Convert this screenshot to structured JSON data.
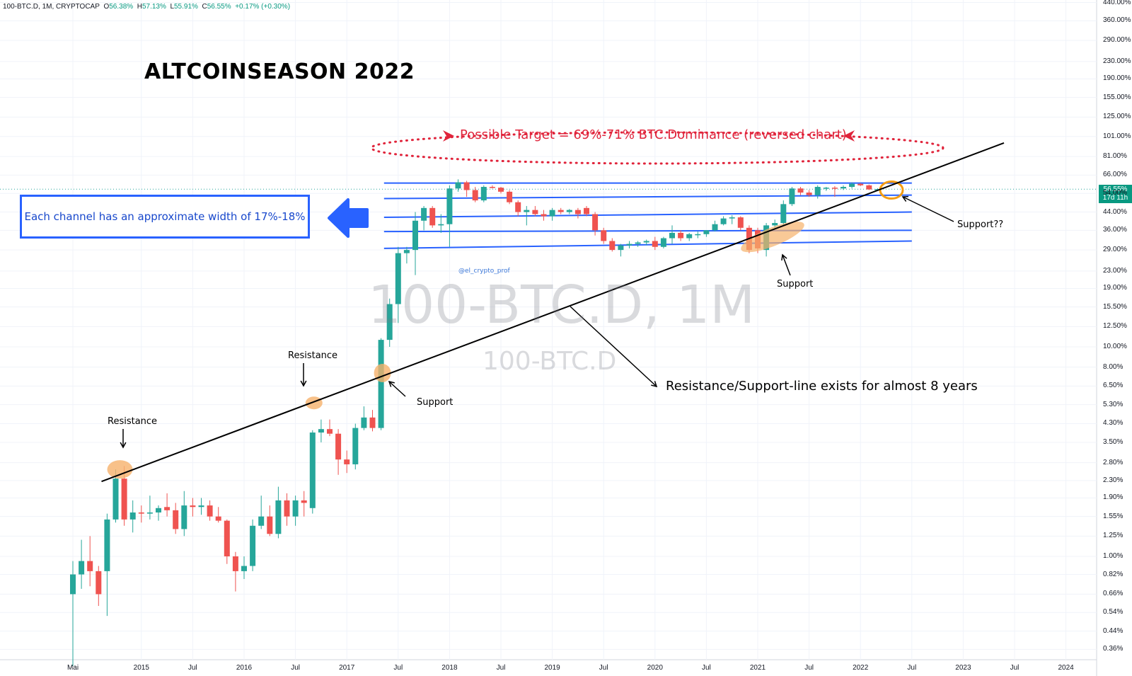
{
  "header": {
    "symbol": "100-BTC.D, 1M, CRYPTOCAP",
    "o_label": "O",
    "o": "56.38%",
    "h_label": "H",
    "h": "57.13%",
    "l_label": "L",
    "l": "55.91%",
    "c_label": "C",
    "c": "56.55%",
    "change": "+0.17% (+0.30%)"
  },
  "title": "ALTCOINSEASON 2022",
  "channel_box": "Each channel has an approximate width of 17%-18%",
  "target_text": "Possible Target = 69%-71% BTC.Dominance (reversed chart)",
  "annotations": {
    "resistance1": "Resistance",
    "resistance2": "Resistance",
    "support1": "Support",
    "support2": "Support",
    "support3": "Support??",
    "trendline": "Resistance/Support-line exists for almost 8 years",
    "credit": "@el_crypto_prof"
  },
  "watermark": {
    "main": "100-BTC.D, 1M",
    "sub": "100-BTC.D"
  },
  "price_tag": {
    "value": "56.55%",
    "countdown": "17d 11h"
  },
  "colors": {
    "up": "#26a69a",
    "down": "#ef5350",
    "channel": "#2962ff",
    "target": "#e0233a",
    "highlight": "#f6b26b"
  },
  "chart_data": {
    "type": "candlestick",
    "y_scale": "log",
    "y_unit": "%",
    "y_ticks": [
      "440.00%",
      "360.00%",
      "290.00%",
      "230.00%",
      "190.00%",
      "155.00%",
      "125.00%",
      "101.00%",
      "81.00%",
      "66.00%",
      "54.00%",
      "44.00%",
      "36.00%",
      "29.00%",
      "23.00%",
      "19.00%",
      "15.50%",
      "12.50%",
      "10.00%",
      "8.00%",
      "6.50%",
      "5.30%",
      "4.30%",
      "3.50%",
      "2.80%",
      "2.30%",
      "1.90%",
      "1.55%",
      "1.25%",
      "1.00%",
      "0.82%",
      "0.66%",
      "0.54%",
      "0.44%",
      "0.36%"
    ],
    "x_ticks": [
      "Mai",
      "2015",
      "Jul",
      "2016",
      "Jul",
      "2017",
      "Jul",
      "2018",
      "Jul",
      "2019",
      "Jul",
      "2020",
      "Jul",
      "2021",
      "Jul",
      "2022",
      "Jul",
      "2023",
      "Jul",
      "2024"
    ],
    "candles": [
      {
        "date": "2014-05",
        "o": 0.66,
        "h": 0.95,
        "l": 0.3,
        "c": 0.82
      },
      {
        "date": "2014-06",
        "o": 0.82,
        "h": 1.2,
        "l": 0.7,
        "c": 0.95
      },
      {
        "date": "2014-07",
        "o": 0.95,
        "h": 1.25,
        "l": 0.72,
        "c": 0.85
      },
      {
        "date": "2014-08",
        "o": 0.85,
        "h": 0.9,
        "l": 0.58,
        "c": 0.66
      },
      {
        "date": "2014-09",
        "o": 0.85,
        "h": 1.6,
        "l": 0.52,
        "c": 1.5
      },
      {
        "date": "2014-10",
        "o": 1.5,
        "h": 2.6,
        "l": 1.45,
        "c": 2.35
      },
      {
        "date": "2014-11",
        "o": 2.35,
        "h": 2.7,
        "l": 1.4,
        "c": 1.5
      },
      {
        "date": "2014-12",
        "o": 1.5,
        "h": 1.85,
        "l": 1.3,
        "c": 1.62
      },
      {
        "date": "2015-01",
        "o": 1.62,
        "h": 1.75,
        "l": 1.45,
        "c": 1.6
      },
      {
        "date": "2015-02",
        "o": 1.6,
        "h": 1.95,
        "l": 1.5,
        "c": 1.62
      },
      {
        "date": "2015-03",
        "o": 1.62,
        "h": 1.75,
        "l": 1.48,
        "c": 1.7
      },
      {
        "date": "2015-04",
        "o": 1.72,
        "h": 2.0,
        "l": 1.55,
        "c": 1.66
      },
      {
        "date": "2015-05",
        "o": 1.66,
        "h": 1.8,
        "l": 1.28,
        "c": 1.35
      },
      {
        "date": "2015-06",
        "o": 1.35,
        "h": 2.05,
        "l": 1.25,
        "c": 1.75
      },
      {
        "date": "2015-07",
        "o": 1.75,
        "h": 1.9,
        "l": 1.55,
        "c": 1.72
      },
      {
        "date": "2015-08",
        "o": 1.72,
        "h": 1.9,
        "l": 1.58,
        "c": 1.75
      },
      {
        "date": "2015-09",
        "o": 1.75,
        "h": 1.85,
        "l": 1.48,
        "c": 1.55
      },
      {
        "date": "2015-10",
        "o": 1.55,
        "h": 1.72,
        "l": 1.45,
        "c": 1.48
      },
      {
        "date": "2015-11",
        "o": 1.48,
        "h": 1.5,
        "l": 0.92,
        "c": 1.0
      },
      {
        "date": "2015-12",
        "o": 1.0,
        "h": 1.05,
        "l": 0.68,
        "c": 0.85
      },
      {
        "date": "2016-01",
        "o": 0.85,
        "h": 1.0,
        "l": 0.78,
        "c": 0.9
      },
      {
        "date": "2016-02",
        "o": 0.9,
        "h": 1.5,
        "l": 0.85,
        "c": 1.4
      },
      {
        "date": "2016-03",
        "o": 1.4,
        "h": 1.95,
        "l": 1.35,
        "c": 1.55
      },
      {
        "date": "2016-04",
        "o": 1.55,
        "h": 1.75,
        "l": 1.25,
        "c": 1.28
      },
      {
        "date": "2016-05",
        "o": 1.28,
        "h": 2.15,
        "l": 1.22,
        "c": 1.85
      },
      {
        "date": "2016-06",
        "o": 1.85,
        "h": 2.0,
        "l": 1.4,
        "c": 1.55
      },
      {
        "date": "2016-07",
        "o": 1.55,
        "h": 1.95,
        "l": 1.4,
        "c": 1.85
      },
      {
        "date": "2016-08",
        "o": 1.85,
        "h": 2.05,
        "l": 1.55,
        "c": 1.8
      },
      {
        "date": "2016-09",
        "o": 1.7,
        "h": 4.0,
        "l": 1.6,
        "c": 3.9
      },
      {
        "date": "2016-10",
        "o": 3.9,
        "h": 4.5,
        "l": 3.5,
        "c": 4.05
      },
      {
        "date": "2016-11",
        "o": 4.05,
        "h": 4.5,
        "l": 3.75,
        "c": 3.85
      },
      {
        "date": "2016-12",
        "o": 3.85,
        "h": 4.05,
        "l": 2.45,
        "c": 2.9
      },
      {
        "date": "2017-01",
        "o": 2.9,
        "h": 3.2,
        "l": 2.5,
        "c": 2.75
      },
      {
        "date": "2017-02",
        "o": 2.75,
        "h": 4.3,
        "l": 2.6,
        "c": 4.1
      },
      {
        "date": "2017-03",
        "o": 4.1,
        "h": 5.2,
        "l": 4.0,
        "c": 4.6
      },
      {
        "date": "2017-04",
        "o": 4.6,
        "h": 5.0,
        "l": 3.95,
        "c": 4.1
      },
      {
        "date": "2017-05",
        "o": 4.1,
        "h": 11.0,
        "l": 4.0,
        "c": 10.8
      },
      {
        "date": "2017-06",
        "o": 10.8,
        "h": 17.0,
        "l": 10.0,
        "c": 16.0
      },
      {
        "date": "2017-07",
        "o": 16.0,
        "h": 30.0,
        "l": 13.0,
        "c": 28.0
      },
      {
        "date": "2017-08",
        "o": 28.0,
        "h": 30.0,
        "l": 25.0,
        "c": 29.0
      },
      {
        "date": "2017-09",
        "o": 29.0,
        "h": 44.0,
        "l": 22.0,
        "c": 40.0
      },
      {
        "date": "2017-10",
        "o": 40.0,
        "h": 47.0,
        "l": 36.0,
        "c": 46.0
      },
      {
        "date": "2017-11",
        "o": 46.0,
        "h": 47.0,
        "l": 37.0,
        "c": 38.0
      },
      {
        "date": "2017-12",
        "o": 38.0,
        "h": 43.0,
        "l": 35.0,
        "c": 38.5
      },
      {
        "date": "2018-01",
        "o": 38.5,
        "h": 59.0,
        "l": 30.0,
        "c": 57.0
      },
      {
        "date": "2018-02",
        "o": 57.0,
        "h": 63.0,
        "l": 55.0,
        "c": 61.0
      },
      {
        "date": "2018-03",
        "o": 61.0,
        "h": 62.0,
        "l": 52.0,
        "c": 56.0
      },
      {
        "date": "2018-04",
        "o": 56.0,
        "h": 58.0,
        "l": 49.0,
        "c": 50.0
      },
      {
        "date": "2018-05",
        "o": 50.0,
        "h": 59.0,
        "l": 49.0,
        "c": 58.0
      },
      {
        "date": "2018-06",
        "o": 58.0,
        "h": 59.0,
        "l": 57.0,
        "c": 57.5
      },
      {
        "date": "2018-07",
        "o": 57.5,
        "h": 58.0,
        "l": 54.0,
        "c": 55.0
      },
      {
        "date": "2018-08",
        "o": 55.0,
        "h": 56.0,
        "l": 48.0,
        "c": 49.0
      },
      {
        "date": "2018-09",
        "o": 49.0,
        "h": 50.0,
        "l": 42.0,
        "c": 44.0
      },
      {
        "date": "2018-10",
        "o": 44.0,
        "h": 47.0,
        "l": 38.0,
        "c": 45.0
      },
      {
        "date": "2018-11",
        "o": 45.0,
        "h": 47.0,
        "l": 42.0,
        "c": 43.0
      },
      {
        "date": "2018-12",
        "o": 43.0,
        "h": 45.0,
        "l": 40.0,
        "c": 42.0
      },
      {
        "date": "2019-01",
        "o": 42.0,
        "h": 46.0,
        "l": 40.0,
        "c": 45.0
      },
      {
        "date": "2019-02",
        "o": 45.0,
        "h": 46.0,
        "l": 43.0,
        "c": 44.0
      },
      {
        "date": "2019-03",
        "o": 44.0,
        "h": 45.5,
        "l": 43.0,
        "c": 45.0
      },
      {
        "date": "2019-04",
        "o": 45.0,
        "h": 46.0,
        "l": 41.0,
        "c": 43.0
      },
      {
        "date": "2019-05",
        "o": 46.0,
        "h": 47.0,
        "l": 42.0,
        "c": 43.0
      },
      {
        "date": "2019-06",
        "o": 43.0,
        "h": 44.0,
        "l": 34.0,
        "c": 36.0
      },
      {
        "date": "2019-07",
        "o": 36.0,
        "h": 37.0,
        "l": 31.0,
        "c": 32.0
      },
      {
        "date": "2019-08",
        "o": 32.0,
        "h": 33.0,
        "l": 28.5,
        "c": 29.0
      },
      {
        "date": "2019-09",
        "o": 29.0,
        "h": 31.0,
        "l": 27.0,
        "c": 30.5
      },
      {
        "date": "2019-10",
        "o": 30.5,
        "h": 32.0,
        "l": 29.5,
        "c": 31.0
      },
      {
        "date": "2019-11",
        "o": 31.0,
        "h": 32.0,
        "l": 30.0,
        "c": 31.5
      },
      {
        "date": "2019-12",
        "o": 31.5,
        "h": 32.5,
        "l": 30.5,
        "c": 32.0
      },
      {
        "date": "2020-01",
        "o": 32.0,
        "h": 33.5,
        "l": 29.0,
        "c": 30.0
      },
      {
        "date": "2020-02",
        "o": 30.0,
        "h": 33.5,
        "l": 29.5,
        "c": 33.0
      },
      {
        "date": "2020-03",
        "o": 33.0,
        "h": 38.0,
        "l": 31.0,
        "c": 35.0
      },
      {
        "date": "2020-04",
        "o": 35.0,
        "h": 36.0,
        "l": 32.0,
        "c": 33.0
      },
      {
        "date": "2020-05",
        "o": 33.0,
        "h": 35.0,
        "l": 32.0,
        "c": 34.5
      },
      {
        "date": "2020-06",
        "o": 34.5,
        "h": 35.5,
        "l": 33.0,
        "c": 34.5
      },
      {
        "date": "2020-07",
        "o": 34.5,
        "h": 36.0,
        "l": 33.5,
        "c": 36.0
      },
      {
        "date": "2020-08",
        "o": 36.0,
        "h": 40.0,
        "l": 35.5,
        "c": 38.5
      },
      {
        "date": "2020-09",
        "o": 38.5,
        "h": 42.0,
        "l": 38.0,
        "c": 41.0
      },
      {
        "date": "2020-10",
        "o": 41.0,
        "h": 42.5,
        "l": 38.5,
        "c": 41.5
      },
      {
        "date": "2020-11",
        "o": 41.5,
        "h": 42.0,
        "l": 36.0,
        "c": 37.0
      },
      {
        "date": "2020-12",
        "o": 37.0,
        "h": 38.0,
        "l": 28.0,
        "c": 29.0
      },
      {
        "date": "2021-01",
        "o": 36.0,
        "h": 37.0,
        "l": 28.0,
        "c": 29.5
      },
      {
        "date": "2021-02",
        "o": 29.0,
        "h": 39.0,
        "l": 27.0,
        "c": 38.0
      },
      {
        "date": "2021-03",
        "o": 38.0,
        "h": 40.5,
        "l": 37.0,
        "c": 39.0
      },
      {
        "date": "2021-04",
        "o": 39.0,
        "h": 50.0,
        "l": 38.0,
        "c": 48.0
      },
      {
        "date": "2021-05",
        "o": 48.0,
        "h": 58.0,
        "l": 47.0,
        "c": 57.0
      },
      {
        "date": "2021-06",
        "o": 57.0,
        "h": 58.0,
        "l": 53.0,
        "c": 54.5
      },
      {
        "date": "2021-07",
        "o": 54.5,
        "h": 56.0,
        "l": 52.0,
        "c": 53.0
      },
      {
        "date": "2021-08",
        "o": 53.0,
        "h": 59.0,
        "l": 51.0,
        "c": 58.0
      },
      {
        "date": "2021-09",
        "o": 57.0,
        "h": 58.0,
        "l": 55.5,
        "c": 57.5
      },
      {
        "date": "2021-10",
        "o": 57.5,
        "h": 58.5,
        "l": 52.0,
        "c": 57.0
      },
      {
        "date": "2021-11",
        "o": 57.0,
        "h": 59.0,
        "l": 56.0,
        "c": 58.0
      },
      {
        "date": "2021-12",
        "o": 58.0,
        "h": 61.0,
        "l": 57.0,
        "c": 60.0
      },
      {
        "date": "2022-01",
        "o": 60.0,
        "h": 60.5,
        "l": 58.5,
        "c": 59.0
      },
      {
        "date": "2022-02",
        "o": 59.0,
        "h": 59.5,
        "l": 56.0,
        "c": 56.4
      },
      {
        "date": "2022-03",
        "o": 56.38,
        "h": 57.13,
        "l": 55.91,
        "c": 56.55
      }
    ],
    "trendline": {
      "from": {
        "date": "2014-10",
        "value": 2.35
      },
      "to": {
        "date": "2023-07",
        "value": 94.0
      }
    },
    "channels": [
      {
        "date_from": "2017-07",
        "date_to": "2022-07",
        "from": 29.5,
        "to": 32.0
      },
      {
        "date_from": "2017-07",
        "date_to": "2022-07",
        "from": 35.5,
        "to": 36.0
      },
      {
        "date_from": "2017-07",
        "date_to": "2022-07",
        "from": 41.5,
        "to": 44.0
      },
      {
        "date_from": "2017-07",
        "date_to": "2022-07",
        "from": 51.0,
        "to": 53.0
      },
      {
        "date_from": "2017-07",
        "date_to": "2022-07",
        "from": 60.5,
        "to": 60.5
      }
    ]
  }
}
